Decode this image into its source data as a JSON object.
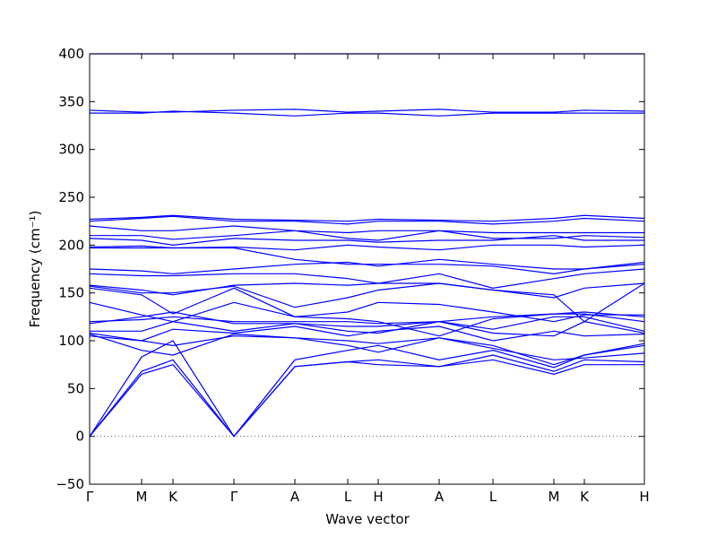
{
  "chart_data": {
    "type": "line",
    "xlabel": "Wave vector",
    "ylabel": "Frequency (cm⁻¹)",
    "color": "#0000ff",
    "zero_line": true,
    "x": [
      0,
      58,
      93,
      161,
      229,
      288,
      322,
      390,
      450,
      518,
      552,
      619
    ],
    "xlim": [
      0,
      619
    ],
    "xticks": [
      {
        "value": 0,
        "label": "Γ"
      },
      {
        "value": 58,
        "label": "M"
      },
      {
        "value": 93,
        "label": "K"
      },
      {
        "value": 161,
        "label": "Γ"
      },
      {
        "value": 229,
        "label": "A"
      },
      {
        "value": 288,
        "label": "L"
      },
      {
        "value": 322,
        "label": "H"
      },
      {
        "value": 390,
        "label": "A"
      },
      {
        "value": 450,
        "label": "L"
      },
      {
        "value": 518,
        "label": "M"
      },
      {
        "value": 552,
        "label": "K"
      },
      {
        "value": 619,
        "label": "H"
      }
    ],
    "ylim": [
      -50,
      400
    ],
    "yticks": [
      {
        "value": -50,
        "label": "−50"
      },
      0,
      50,
      100,
      150,
      200,
      250,
      300,
      350,
      400
    ],
    "series": [
      {
        "values": [
          0,
          65,
          75,
          0,
          73,
          78,
          75,
          73,
          80,
          65,
          75,
          75
        ]
      },
      {
        "values": [
          0,
          68,
          80,
          0,
          73,
          78,
          80,
          73,
          85,
          68,
          80,
          78
        ]
      },
      {
        "values": [
          0,
          83,
          100,
          0,
          80,
          90,
          95,
          80,
          90,
          72,
          85,
          95
        ]
      },
      {
        "values": [
          105,
          100,
          95,
          105,
          103,
          95,
          88,
          103,
          95,
          75,
          85,
          97
        ]
      },
      {
        "values": [
          107,
          90,
          85,
          107,
          103,
          100,
          97,
          103,
          92,
          80,
          82,
          87
        ]
      },
      {
        "values": [
          108,
          100,
          112,
          108,
          115,
          105,
          110,
          115,
          100,
          110,
          105,
          107
        ]
      },
      {
        "values": [
          110,
          110,
          120,
          110,
          118,
          110,
          108,
          120,
          108,
          105,
          120,
          108
        ]
      },
      {
        "values": [
          118,
          125,
          130,
          118,
          118,
          115,
          115,
          120,
          112,
          125,
          125,
          110
        ]
      },
      {
        "values": [
          120,
          122,
          125,
          120,
          120,
          120,
          118,
          120,
          125,
          128,
          128,
          120
        ]
      },
      {
        "values": [
          140,
          127,
          120,
          140,
          125,
          123,
          120,
          105,
          123,
          128,
          130,
          125
        ]
      },
      {
        "values": [
          155,
          148,
          128,
          155,
          125,
          130,
          140,
          138,
          130,
          120,
          127,
          127
        ]
      },
      {
        "values": [
          157,
          150,
          150,
          157,
          135,
          145,
          153,
          160,
          153,
          148,
          120,
          160
        ]
      },
      {
        "values": [
          158,
          153,
          148,
          158,
          160,
          158,
          160,
          160,
          153,
          145,
          155,
          160
        ]
      },
      {
        "values": [
          170,
          168,
          168,
          170,
          170,
          165,
          160,
          170,
          155,
          165,
          170,
          175
        ]
      },
      {
        "values": [
          175,
          173,
          170,
          175,
          180,
          182,
          178,
          185,
          180,
          175,
          175,
          182
        ]
      },
      {
        "values": [
          197,
          197,
          197,
          197,
          185,
          180,
          180,
          180,
          178,
          170,
          175,
          180
        ]
      },
      {
        "values": [
          198,
          199,
          197,
          198,
          195,
          200,
          198,
          195,
          200,
          200,
          198,
          200
        ]
      },
      {
        "values": [
          207,
          205,
          200,
          207,
          205,
          205,
          203,
          205,
          205,
          210,
          205,
          205
        ]
      },
      {
        "values": [
          210,
          210,
          206,
          210,
          215,
          207,
          205,
          215,
          207,
          207,
          210,
          208
        ]
      },
      {
        "values": [
          220,
          215,
          215,
          220,
          215,
          213,
          215,
          215,
          213,
          213,
          213,
          213
        ]
      },
      {
        "values": [
          225,
          228,
          230,
          225,
          225,
          222,
          225,
          225,
          222,
          225,
          228,
          225
        ]
      },
      {
        "values": [
          227,
          229,
          231,
          227,
          226,
          225,
          227,
          226,
          225,
          228,
          231,
          228
        ]
      },
      {
        "values": [
          338,
          338,
          340,
          338,
          335,
          338,
          338,
          335,
          338,
          338,
          338,
          338
        ]
      },
      {
        "values": [
          341,
          339,
          339,
          341,
          342,
          339,
          340,
          342,
          339,
          339,
          341,
          340
        ]
      },
      {
        "values": [
          400,
          400,
          400,
          400,
          400,
          400,
          400,
          400,
          400,
          400,
          400,
          400
        ]
      }
    ]
  }
}
